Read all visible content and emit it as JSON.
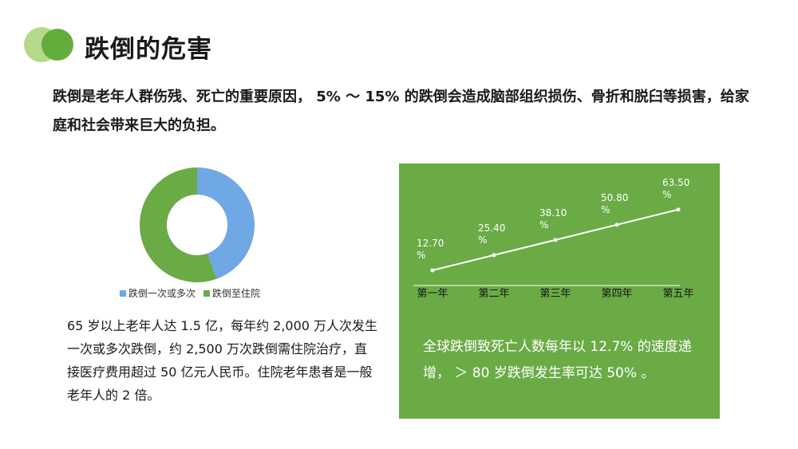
{
  "header": {
    "title": "跌倒的危害"
  },
  "intro": {
    "text": "跌倒是老年人群伤残、死亡的重要原因， 5% ～ 15% 的跌倒会造成脑部组织损伤、骨折和脱臼等损害，给家庭和社会带来巨大的负担。"
  },
  "left_description": "65 岁以上老年人达 1.5 亿，每年约 2,000 万人次发生一次或多次跌倒，约 2,500 万次跌倒需住院治疗，直接医疗费用超过 50  亿元人民币。住院老年患者是一般老年人的 2 倍。",
  "right_description": "全球跌倒致死亡人数每年以 12.7% 的速度递增， ＞ 80 岁跌倒发生率可达 50% 。",
  "colors": {
    "accent_green": "#6aab46",
    "light_green": "#b5d98a",
    "blue": "#6fa8e4",
    "panel_bg": "#6aab46"
  },
  "chart_data": [
    {
      "type": "pie",
      "style": "donut",
      "categories": [
        "跌倒一次或多次",
        "跌倒至住院"
      ],
      "values": [
        2000,
        2500
      ],
      "colors": [
        "#6fa8e4",
        "#6aab46"
      ],
      "legend_position": "bottom"
    },
    {
      "type": "line",
      "categories": [
        "第一年",
        "第二年",
        "第三年",
        "第四年",
        "第五年"
      ],
      "values": [
        12.7,
        25.4,
        38.1,
        50.8,
        63.5
      ],
      "data_labels": [
        "12.70\n%",
        "25.40\n%",
        "38.10\n%",
        "50.80\n%",
        "63.50\n%"
      ],
      "ylim": [
        0,
        70
      ],
      "grid": false,
      "line_color": "#ffffff"
    }
  ]
}
